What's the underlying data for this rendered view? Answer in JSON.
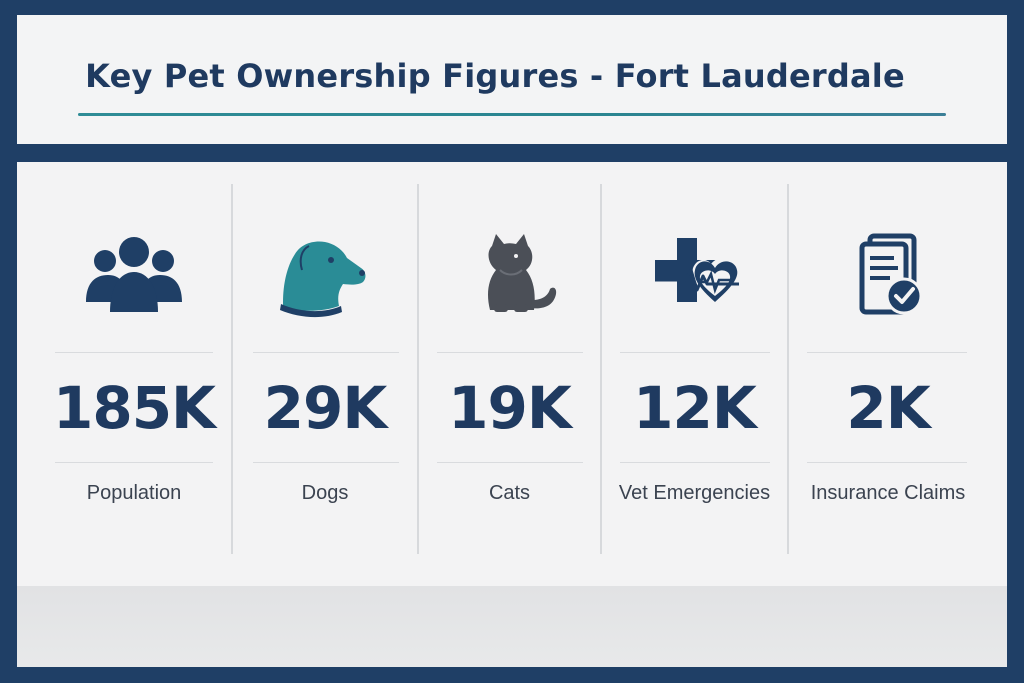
{
  "header": {
    "title": "Key Pet Ownership Figures - Fort Lauderdale"
  },
  "stats": [
    {
      "value": "185K",
      "label": "Population",
      "icon": "people-group-icon",
      "icon_color": "#1f3f66"
    },
    {
      "value": "29K",
      "label": "Dogs",
      "icon": "dog-icon",
      "icon_color": "#2a8c96"
    },
    {
      "value": "19K",
      "label": "Cats",
      "icon": "cat-icon",
      "icon_color": "#4b4f57"
    },
    {
      "value": "12K",
      "label": "Vet Emergencies",
      "icon": "medical-cross-heart-icon",
      "icon_color": "#1f3f66"
    },
    {
      "value": "2K",
      "label": "Insurance Claims",
      "icon": "insurance-document-check-icon",
      "icon_color": "#1f3f66"
    }
  ],
  "colors": {
    "frame": "#1f3f66",
    "accent": "#2a8c96",
    "text_dark": "#1f3a60"
  }
}
